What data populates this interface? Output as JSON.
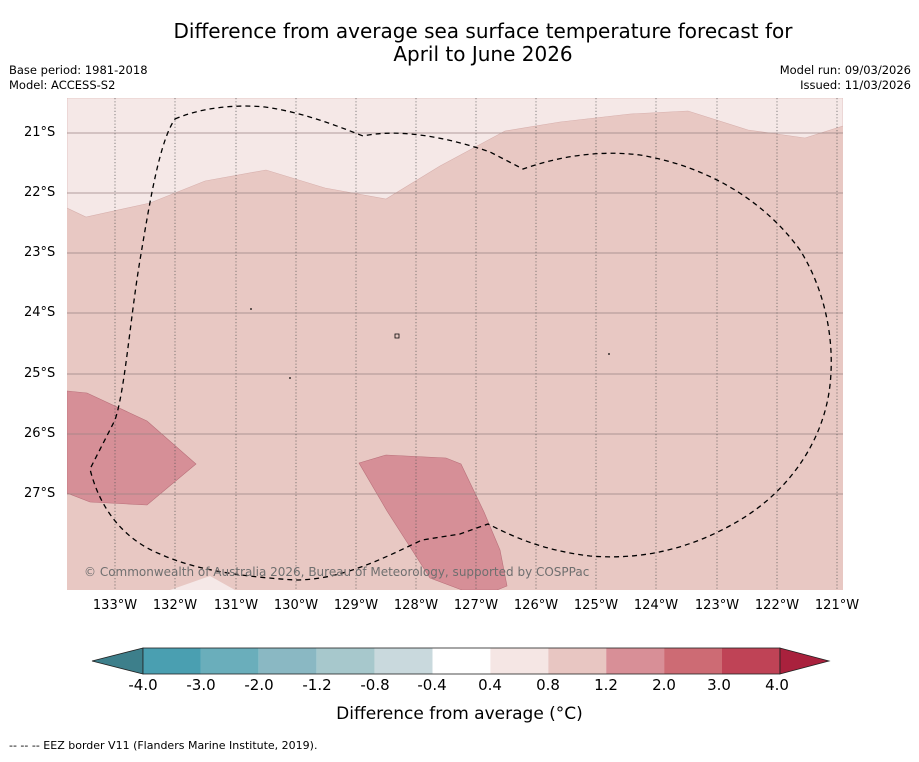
{
  "title": {
    "line1": "Difference from average sea surface temperature forecast for",
    "line2": "April to June 2026"
  },
  "meta_left": {
    "base_period": "Base period: 1981-2018",
    "model": "Model: ACCESS-S2"
  },
  "meta_right": {
    "model_run": "Model run: 09/03/2026",
    "issued": "Issued: 11/03/2026"
  },
  "map": {
    "latitudes": [
      "21°S",
      "22°S",
      "23°S",
      "24°S",
      "25°S",
      "26°S",
      "27°S"
    ],
    "longitudes": [
      "133°W",
      "132°W",
      "131°W",
      "130°W",
      "129°W",
      "128°W",
      "127°W",
      "126°W",
      "125°W",
      "124°W",
      "123°W",
      "122°W",
      "121°W"
    ],
    "copyright": "© Commonwealth of Australia 2026, Bureau of Meteorology, supported by COSPPac"
  },
  "colorbar": {
    "ticks": [
      "-4.0",
      "-3.0",
      "-2.0",
      "-1.2",
      "-0.8",
      "-0.4",
      "0.4",
      "0.8",
      "1.2",
      "2.0",
      "3.0",
      "4.0"
    ],
    "colors": [
      "#4a9fb1",
      "#6aaebb",
      "#8ab8c3",
      "#a7c8cc",
      "#c9d9dd",
      "#ffffff",
      "#f5e6e4",
      "#e8c6c2",
      "#d88f97",
      "#cd6b74",
      "#bf4356"
    ],
    "under_color": "#3d7f8b",
    "over_color": "#a9213d",
    "label": "Difference from average (°C)"
  },
  "regions": {
    "base_color": "#e8c8c3",
    "light_color": "#f5e8e7",
    "warm_color": "#d68f97"
  },
  "footnote": "--  --  -- EEZ border V11 (Flanders Marine Institute, 2019)."
}
